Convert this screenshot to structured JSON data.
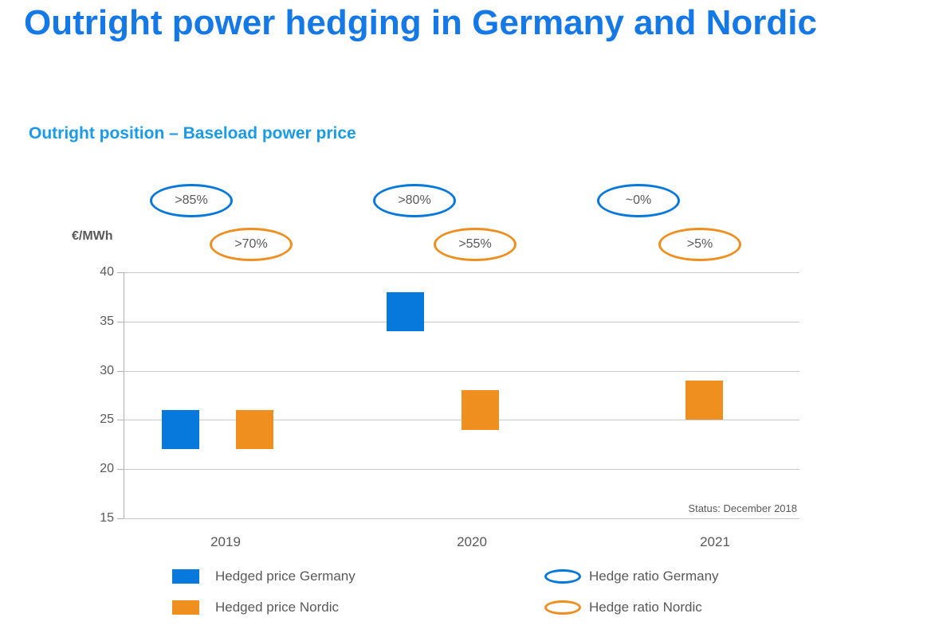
{
  "page": {
    "title": "Outright power hedging in Germany and Nordic",
    "subtitle": "Outright position – Baseload power price",
    "status": "Status: December 2018"
  },
  "colors": {
    "title_blue": "#1479e6",
    "subtitle_blue": "#199be9",
    "germany_blue": "#0778dc",
    "nordic_orange": "#ee8f1f",
    "text_gray": "#595959",
    "grid": "#c9c9c9",
    "axis": "#b0b0b0"
  },
  "chart_data": {
    "type": "bar",
    "subtype": "floating-range-columns",
    "title": "Outright position – Baseload power price",
    "unit_label": "€/MWh",
    "categories": [
      "2019",
      "2020",
      "2021"
    ],
    "ylim": [
      15,
      40
    ],
    "yticks": [
      40,
      35,
      30,
      25,
      20,
      15
    ],
    "grid": true,
    "series": [
      {
        "name": "Hedged price Germany",
        "color": "#0778dc",
        "ranges": [
          [
            22,
            26
          ],
          [
            34,
            38
          ],
          null
        ]
      },
      {
        "name": "Hedged price Nordic",
        "color": "#ee8f1f",
        "ranges": [
          [
            22,
            26
          ],
          [
            24,
            28
          ],
          [
            25,
            29
          ]
        ]
      }
    ],
    "hedge_ratios": [
      {
        "name": "Hedge ratio Germany",
        "color": "#0778dc",
        "values": [
          ">85%",
          ">80%",
          "~0%"
        ]
      },
      {
        "name": "Hedge ratio Nordic",
        "color": "#ee8f1f",
        "values": [
          ">70%",
          ">55%",
          ">5%"
        ]
      }
    ],
    "annotations": [
      "Status: December 2018"
    ],
    "legend_position": "bottom"
  },
  "legend": {
    "items": [
      {
        "label": "Hedged price Germany",
        "swatch": "rect",
        "color": "#0778dc"
      },
      {
        "label": "Hedged price Nordic",
        "swatch": "rect",
        "color": "#ee8f1f"
      },
      {
        "label": "Hedge ratio Germany",
        "swatch": "ellipse",
        "color": "#0778dc"
      },
      {
        "label": "Hedge ratio Nordic",
        "swatch": "ellipse",
        "color": "#ee8f1f"
      }
    ]
  }
}
